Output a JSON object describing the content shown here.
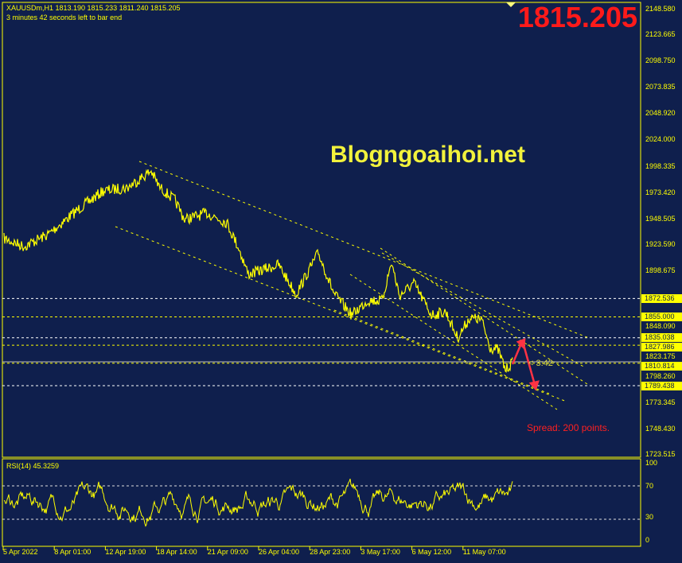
{
  "header": {
    "symbol_line": "XAUUSDm,H1  1813.190 1815.233 1811.240 1815.205",
    "timer": "3 minutes 42 seconds left to bar end"
  },
  "current_price": "1815.205",
  "watermark": "Blogngoaihoi.net",
  "spread": "Spread: 200 points.",
  "countdown": "< 3:42",
  "price_axis": [
    "2148.580",
    "2123.665",
    "2098.750",
    "2073.835",
    "2048.920",
    "2024.000",
    "1998.335",
    "1973.420",
    "1948.505",
    "1923.590",
    "1898.675",
    "1848.090",
    "1823.175",
    "1798.260",
    "1773.345",
    "1748.430",
    "1723.515"
  ],
  "levels": [
    {
      "price": "1872.536",
      "color": "#ffffff"
    },
    {
      "price": "1855.000",
      "color": "#ffff00"
    },
    {
      "price": "1835.038",
      "color": "#ffffff"
    },
    {
      "price": "1827.986",
      "color": "#ffff00"
    },
    {
      "price": "1810.814",
      "color": "#ffff00"
    },
    {
      "price": "1789.438",
      "color": "#ffffff"
    }
  ],
  "rsi": {
    "label": "RSI(14) 45.3259",
    "axis": [
      "100",
      "70",
      "30",
      "0"
    ]
  },
  "time_axis": [
    "5 Apr 2022",
    "8 Apr 01:00",
    "12 Apr 19:00",
    "18 Apr 14:00",
    "21 Apr 09:00",
    "26 Apr 04:00",
    "28 Apr 23:00",
    "3 May 17:00",
    "6 May 12:00",
    "11 May 07:00"
  ],
  "colors": {
    "background": "#0f1f4d",
    "price_line": "#ffff00",
    "arrow": "#ff3344",
    "current_price": "#ff1a1a"
  }
}
